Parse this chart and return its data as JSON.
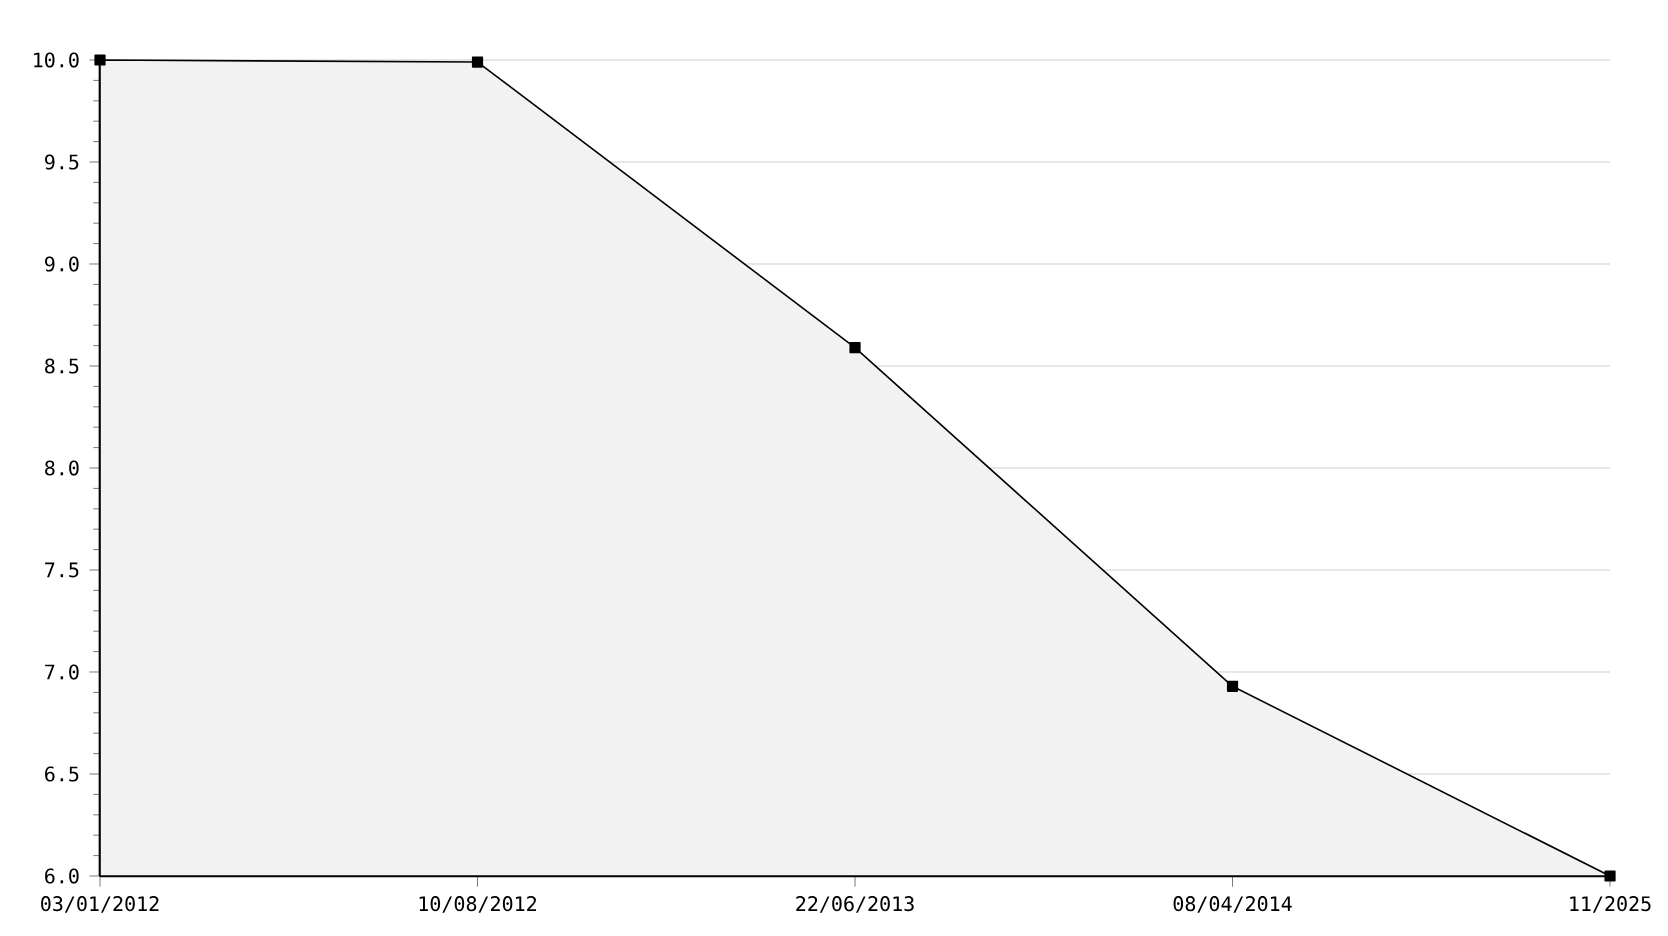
{
  "chart_data": {
    "type": "area",
    "categories": [
      "03/01/2012",
      "10/08/2012",
      "22/06/2013",
      "08/04/2014",
      "11/2025"
    ],
    "series": [
      {
        "color": "#000000",
        "values": [
          10.0,
          9.99,
          8.59,
          6.93,
          6.0
        ]
      }
    ],
    "ylim": [
      6,
      10
    ],
    "yticks": [
      {
        "value": 6,
        "label": "6.0"
      },
      {
        "value": 6.5,
        "label": "6.5"
      },
      {
        "value": 7,
        "label": "7.0"
      },
      {
        "value": 7.5,
        "label": "7.5"
      },
      {
        "value": 8,
        "label": "8.0"
      },
      {
        "value": 8.5,
        "label": "8.5"
      },
      {
        "value": 9,
        "label": "9.0"
      },
      {
        "value": 9.5,
        "label": "9.5"
      },
      {
        "value": 10,
        "label": "10.0"
      }
    ],
    "grid": "y",
    "marker": "square",
    "line_style": "solid"
  }
}
